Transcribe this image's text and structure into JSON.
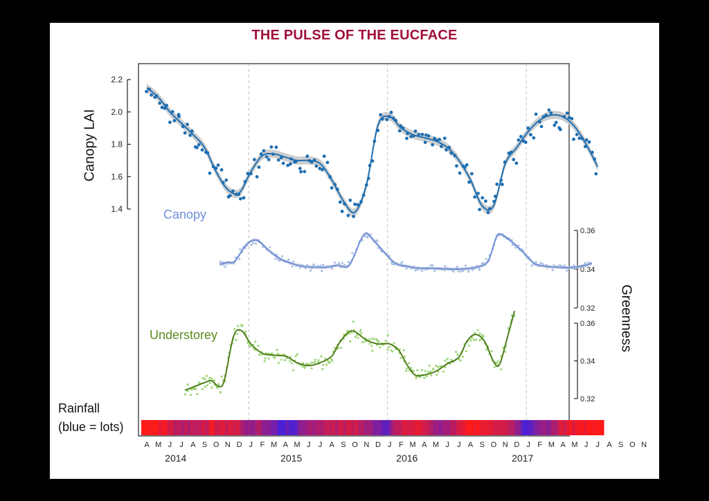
{
  "title": "THE PULSE OF THE EUCFACE",
  "colors": {
    "title": "#a0103a",
    "lai": "#1f6fb2",
    "canopy": "#6e8fd9",
    "canopy_points": "#a9bfe8",
    "understorey": "#4e7d19",
    "understorey_points": "#9fd67a",
    "rain_wet": "#2222ff",
    "rain_dry": "#ff1a1a"
  },
  "labels": {
    "canopy_lai": "Canopy LAI",
    "greenness": "Greenness",
    "rainfall_line1": "Rainfall",
    "rainfall_line2": "(blue = lots)",
    "canopy": "Canopy",
    "understorey": "Understorey"
  },
  "chart_data": [
    {
      "type": "scatter",
      "panel": "top",
      "ylabel": "Canopy LAI",
      "yticks": [
        "1.4",
        "1.6",
        "1.8",
        "2.0",
        "2.2"
      ],
      "ylim": [
        1.4,
        2.2
      ],
      "x_month_labels": [
        "A",
        "M",
        "J",
        "J",
        "A",
        "S",
        "O",
        "N",
        "D",
        "J",
        "F",
        "M",
        "A",
        "M",
        "J",
        "J",
        "A",
        "S",
        "O",
        "N",
        "D",
        "J",
        "F",
        "M",
        "A",
        "M",
        "J",
        "J",
        "A",
        "S",
        "O",
        "N",
        "D",
        "J",
        "F",
        "M",
        "A",
        "M",
        "J",
        "J",
        "A",
        "S",
        "O",
        "N"
      ],
      "x_year_labels": [
        "2014",
        "2015",
        "2016",
        "2017"
      ],
      "x_range_months": [
        0,
        43
      ],
      "smooth": [
        [
          0,
          2.15
        ],
        [
          1,
          2.09
        ],
        [
          2,
          2.0
        ],
        [
          3,
          1.93
        ],
        [
          4,
          1.86
        ],
        [
          5,
          1.78
        ],
        [
          6,
          1.63
        ],
        [
          7,
          1.52
        ],
        [
          8,
          1.5
        ],
        [
          9,
          1.63
        ],
        [
          10,
          1.73
        ],
        [
          11,
          1.74
        ],
        [
          12,
          1.72
        ],
        [
          13,
          1.7
        ],
        [
          14,
          1.7
        ],
        [
          15,
          1.68
        ],
        [
          16,
          1.58
        ],
        [
          17,
          1.45
        ],
        [
          18,
          1.38
        ],
        [
          19,
          1.55
        ],
        [
          20,
          1.92
        ],
        [
          21,
          1.97
        ],
        [
          22,
          1.9
        ],
        [
          23,
          1.86
        ],
        [
          24,
          1.84
        ],
        [
          25,
          1.82
        ],
        [
          26,
          1.78
        ],
        [
          27,
          1.7
        ],
        [
          28,
          1.58
        ],
        [
          29,
          1.42
        ],
        [
          30,
          1.42
        ],
        [
          31,
          1.68
        ],
        [
          32,
          1.78
        ],
        [
          33,
          1.88
        ],
        [
          34,
          1.95
        ],
        [
          35,
          1.98
        ],
        [
          36,
          1.97
        ],
        [
          37,
          1.91
        ],
        [
          38,
          1.8
        ],
        [
          39,
          1.66
        ]
      ],
      "band_halfwidth": 0.025
    },
    {
      "type": "scatter",
      "panel": "middle",
      "series_name": "Canopy",
      "ylabel": "Greenness",
      "yticks": [
        "0.32",
        "0.34",
        "0.36"
      ],
      "ylim": [
        0.32,
        0.36
      ],
      "smooth": [
        [
          6.3,
          0.3425
        ],
        [
          7,
          0.3435
        ],
        [
          7.6,
          0.344
        ],
        [
          8.6,
          0.3525
        ],
        [
          9.5,
          0.355
        ],
        [
          10.5,
          0.35
        ],
        [
          11.5,
          0.3455
        ],
        [
          12.5,
          0.343
        ],
        [
          13.5,
          0.3415
        ],
        [
          14.5,
          0.341
        ],
        [
          15.5,
          0.341
        ],
        [
          16.5,
          0.342
        ],
        [
          17.5,
          0.342
        ],
        [
          18.5,
          0.355
        ],
        [
          19,
          0.3585
        ],
        [
          19.6,
          0.355
        ],
        [
          20.5,
          0.349
        ],
        [
          21.5,
          0.343
        ],
        [
          22.5,
          0.3415
        ],
        [
          23.5,
          0.3405
        ],
        [
          24.5,
          0.3405
        ],
        [
          25.5,
          0.3402
        ],
        [
          26.5,
          0.34
        ],
        [
          27.5,
          0.3402
        ],
        [
          28.5,
          0.341
        ],
        [
          29.5,
          0.344
        ],
        [
          30.2,
          0.356
        ],
        [
          30.6,
          0.358
        ],
        [
          31.5,
          0.3545
        ],
        [
          32.5,
          0.349
        ],
        [
          33.5,
          0.343
        ],
        [
          34.5,
          0.3415
        ],
        [
          35.5,
          0.341
        ],
        [
          36.5,
          0.3408
        ],
        [
          37.5,
          0.3415
        ],
        [
          38.5,
          0.343
        ]
      ],
      "band_halfwidth": 0.0008
    },
    {
      "type": "scatter",
      "panel": "bottom",
      "series_name": "Understorey",
      "ylabel": "Greenness",
      "yticks": [
        "0.32",
        "0.34",
        "0.36"
      ],
      "ylim": [
        0.32,
        0.36
      ],
      "smooth": [
        [
          3.3,
          0.3245
        ],
        [
          4,
          0.326
        ],
        [
          5,
          0.3285
        ],
        [
          5.6,
          0.3295
        ],
        [
          6.2,
          0.3265
        ],
        [
          6.7,
          0.3295
        ],
        [
          7.5,
          0.353
        ],
        [
          8.2,
          0.356
        ],
        [
          9,
          0.349
        ],
        [
          10,
          0.344
        ],
        [
          11,
          0.343
        ],
        [
          12,
          0.3425
        ],
        [
          13,
          0.339
        ],
        [
          14,
          0.3375
        ],
        [
          15,
          0.339
        ],
        [
          16,
          0.3425
        ],
        [
          16.6,
          0.349
        ],
        [
          17.4,
          0.355
        ],
        [
          18,
          0.3555
        ],
        [
          19,
          0.351
        ],
        [
          20,
          0.349
        ],
        [
          21,
          0.349
        ],
        [
          21.8,
          0.3455
        ],
        [
          22.5,
          0.338
        ],
        [
          23.2,
          0.3325
        ],
        [
          24,
          0.3325
        ],
        [
          25,
          0.3345
        ],
        [
          26,
          0.3385
        ],
        [
          27,
          0.342
        ],
        [
          27.7,
          0.3505
        ],
        [
          28.4,
          0.354
        ],
        [
          29.2,
          0.3505
        ],
        [
          30,
          0.3395
        ],
        [
          30.5,
          0.338
        ],
        [
          31.1,
          0.3505
        ],
        [
          31.8,
          0.3665
        ]
      ]
    },
    {
      "type": "heatmap",
      "panel": "rainfall",
      "label": "Rainfall (blue = lots)",
      "wetness_by_month": [
        0,
        0,
        0.1,
        0.3,
        0.3,
        0.3,
        0.1,
        0.2,
        0.2,
        0.5,
        0.4,
        0.6,
        0.8,
        0.7,
        0.5,
        0.4,
        0.3,
        0.3,
        0.2,
        0.4,
        0.5,
        0.7,
        0.3,
        0.2,
        0.1,
        0.4,
        0.5,
        0.3,
        0.1,
        0,
        0.1,
        0.2,
        0.3,
        0.8,
        0.6,
        0.5,
        0.3,
        0.1,
        0,
        0
      ]
    }
  ]
}
